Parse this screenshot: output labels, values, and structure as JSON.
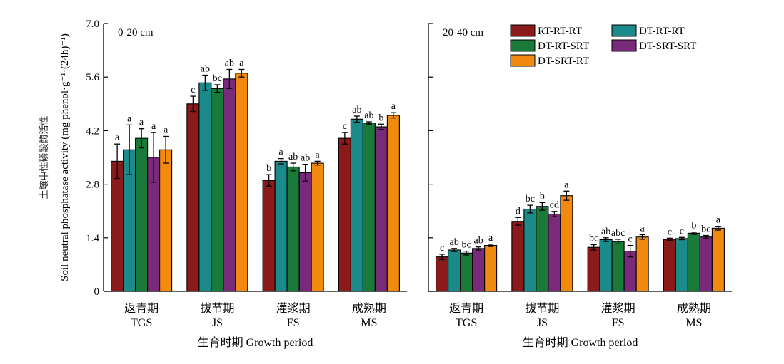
{
  "chart_data": {
    "type": "bar",
    "ylabel_cn": "土壤中性磷酸酶活性",
    "ylabel_en": "Soil neutral phosphatase activity (mg phenol·g⁻¹·(24h)⁻¹)",
    "ylim": [
      0,
      7.0
    ],
    "yticks": [
      "0",
      "1.4",
      "2.8",
      "4.2",
      "5.6",
      "7.0"
    ],
    "xlabel": "生育时期 Growth period",
    "categories": [
      {
        "cn": "返青期",
        "en": "TGS"
      },
      {
        "cn": "拔节期",
        "en": "JS"
      },
      {
        "cn": "灌浆期",
        "en": "FS"
      },
      {
        "cn": "成熟期",
        "en": "MS"
      }
    ],
    "legend": [
      {
        "name": "RT-RT-RT",
        "color": "#8b1a1a"
      },
      {
        "name": "DT-RT-RT",
        "color": "#1a8a8a"
      },
      {
        "name": "DT-RT-SRT",
        "color": "#1a7a3a"
      },
      {
        "name": "DT-SRT-SRT",
        "color": "#7a2a7a"
      },
      {
        "name": "DT-SRT-RT",
        "color": "#f28a10"
      }
    ],
    "panels": [
      {
        "label": "0-20 cm",
        "series": [
          {
            "values": [
              3.4,
              4.9,
              2.9,
              4.0
            ],
            "errors": [
              0.45,
              0.2,
              0.15,
              0.15
            ],
            "letters": [
              "a",
              "c",
              "b",
              "c"
            ]
          },
          {
            "values": [
              3.7,
              5.45,
              3.4,
              4.5
            ],
            "errors": [
              0.65,
              0.2,
              0.07,
              0.08
            ],
            "letters": [
              "a",
              "ab",
              "a",
              "ab"
            ]
          },
          {
            "values": [
              4.0,
              5.3,
              3.25,
              4.4
            ],
            "errors": [
              0.25,
              0.1,
              0.1,
              0.03
            ],
            "letters": [
              "a",
              "bc",
              "ab",
              "ab"
            ]
          },
          {
            "values": [
              3.5,
              5.55,
              3.1,
              4.3
            ],
            "errors": [
              0.65,
              0.25,
              0.22,
              0.07
            ],
            "letters": [
              "a",
              "ab",
              "ab",
              "b"
            ]
          },
          {
            "values": [
              3.7,
              5.7,
              3.35,
              4.6
            ],
            "errors": [
              0.35,
              0.1,
              0.05,
              0.07
            ],
            "letters": [
              "a",
              "a",
              "a",
              "a"
            ]
          }
        ]
      },
      {
        "label": "20-40 cm",
        "series": [
          {
            "values": [
              0.9,
              1.83,
              1.15,
              1.36
            ],
            "errors": [
              0.07,
              0.1,
              0.07,
              0.03
            ],
            "letters": [
              "c",
              "d",
              "bc",
              "c"
            ]
          },
          {
            "values": [
              1.08,
              2.15,
              1.35,
              1.38
            ],
            "errors": [
              0.04,
              0.1,
              0.05,
              0.03
            ],
            "letters": [
              "ab",
              "bc",
              "ab",
              "c"
            ]
          },
          {
            "values": [
              1.0,
              2.22,
              1.3,
              1.52
            ],
            "errors": [
              0.05,
              0.1,
              0.06,
              0.03
            ],
            "letters": [
              "bc",
              "b",
              "abc",
              "b"
            ]
          },
          {
            "values": [
              1.12,
              2.02,
              1.05,
              1.42
            ],
            "errors": [
              0.04,
              0.07,
              0.15,
              0.04
            ],
            "letters": [
              "ab",
              "cd",
              "c",
              "bc"
            ]
          },
          {
            "values": [
              1.2,
              2.5,
              1.42,
              1.65
            ],
            "errors": [
              0.03,
              0.12,
              0.06,
              0.05
            ],
            "letters": [
              "a",
              "a",
              "a",
              "a"
            ]
          }
        ]
      }
    ]
  }
}
